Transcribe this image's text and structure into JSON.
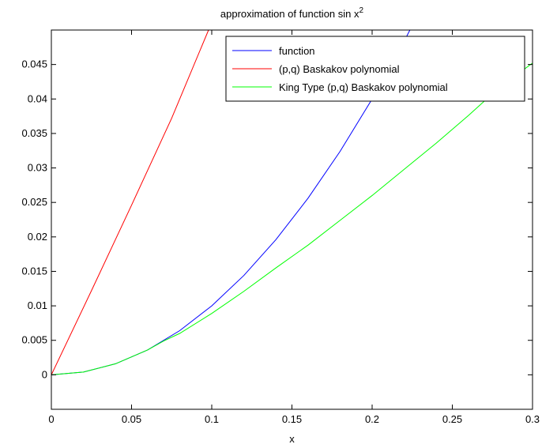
{
  "chart_data": {
    "type": "line",
    "title": "approximation of function sin x",
    "title_superscript": "2",
    "xlabel": "x",
    "ylabel": "",
    "xlim": [
      0,
      0.3
    ],
    "ylim": [
      -0.005,
      0.05
    ],
    "xticks": [
      0,
      0.05,
      0.1,
      0.15,
      0.2,
      0.25,
      0.3
    ],
    "xtick_labels": [
      "0",
      "0.05",
      "0.1",
      "0.15",
      "0.2",
      "0.25",
      "0.3"
    ],
    "yticks": [
      0,
      0.005,
      0.01,
      0.015,
      0.02,
      0.025,
      0.03,
      0.035,
      0.04,
      0.045
    ],
    "ytick_labels": [
      "0",
      "0.005",
      "0.01",
      "0.015",
      "0.02",
      "0.025",
      "0.03",
      "0.035",
      "0.04",
      "0.045"
    ],
    "grid": false,
    "legend_position": "top-right",
    "series": [
      {
        "name": "function",
        "color": "#0000ff",
        "x": [
          0,
          0.02,
          0.04,
          0.06,
          0.08,
          0.1,
          0.12,
          0.14,
          0.16,
          0.18,
          0.2,
          0.22,
          0.224
        ],
        "y": [
          0,
          0.0004,
          0.0016,
          0.0036,
          0.0064,
          0.01,
          0.0144,
          0.0196,
          0.0256,
          0.0324,
          0.04,
          0.0484,
          0.0502
        ]
      },
      {
        "name": "(p,q) Baskakov polynomial",
        "color": "#ff0000",
        "x": [
          0,
          0.025,
          0.05,
          0.075,
          0.098
        ],
        "y": [
          0,
          0.0122,
          0.0246,
          0.0372,
          0.05
        ]
      },
      {
        "name": "King Type (p,q) Baskakov polynomial",
        "color": "#00ff00",
        "x": [
          0,
          0.02,
          0.04,
          0.06,
          0.07,
          0.08,
          0.1,
          0.12,
          0.14,
          0.16,
          0.18,
          0.2,
          0.22,
          0.24,
          0.26,
          0.28,
          0.3
        ],
        "y": [
          0,
          0.0004,
          0.0016,
          0.0036,
          0.0049,
          0.006,
          0.0089,
          0.0121,
          0.0155,
          0.0188,
          0.0224,
          0.026,
          0.0298,
          0.0336,
          0.0376,
          0.0418,
          0.0452
        ]
      }
    ]
  }
}
